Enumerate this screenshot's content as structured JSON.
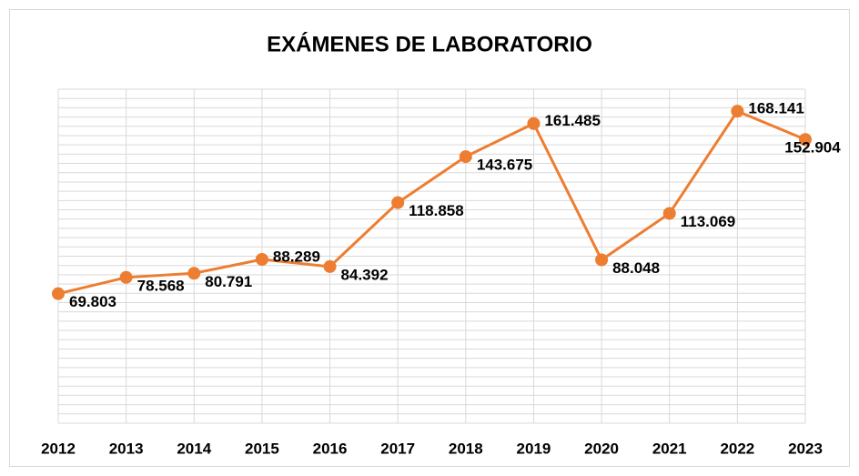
{
  "chart_data": {
    "type": "line",
    "title": "EXÁMENES DE LABORATORIO",
    "categories": [
      "2012",
      "2013",
      "2014",
      "2015",
      "2016",
      "2017",
      "2018",
      "2019",
      "2020",
      "2021",
      "2022",
      "2023"
    ],
    "series": [
      {
        "name": "Exámenes",
        "color": "#ed7d31",
        "values": [
          69803,
          78568,
          80791,
          88289,
          84392,
          118858,
          143675,
          161485,
          88048,
          113069,
          168141,
          152904
        ],
        "value_labels": [
          "69.803",
          "78.568",
          "80.791",
          "88.289",
          "84.392",
          "118.858",
          "143.675",
          "161.485",
          "88.048",
          "113.069",
          "168.141",
          "152.904"
        ]
      }
    ],
    "ylim": [
      0,
      180000
    ],
    "yticks": [
      0,
      5000,
      10000,
      15000,
      20000,
      25000,
      30000,
      35000,
      40000,
      45000,
      50000,
      55000,
      60000,
      65000,
      70000,
      75000,
      80000,
      85000,
      90000,
      95000,
      100000,
      105000,
      110000,
      115000,
      120000,
      125000,
      130000,
      135000,
      140000,
      145000,
      150000,
      155000,
      160000,
      165000,
      170000,
      175000,
      180000
    ],
    "grid": true
  }
}
